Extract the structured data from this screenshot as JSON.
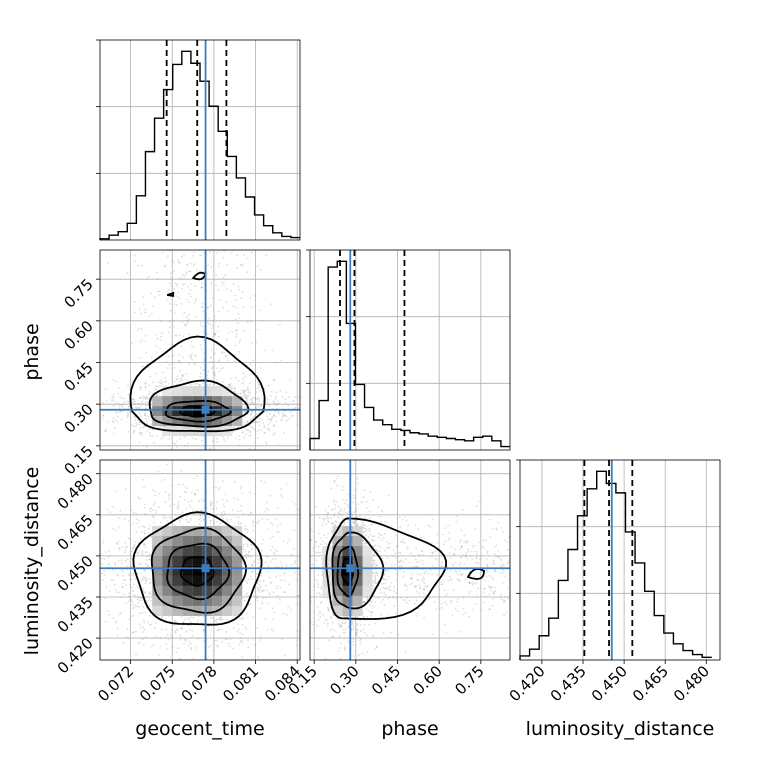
{
  "chart_data": {
    "type": "corner",
    "parameters": [
      "geocent_time",
      "phase",
      "luminosity_distance"
    ],
    "ranges": {
      "geocent_time": [
        0.0698,
        0.0842
      ],
      "phase": [
        0.135,
        0.855
      ],
      "luminosity_distance": [
        0.412,
        0.485
      ]
    },
    "ticks": {
      "geocent_time": {
        "values": [
          0.072,
          0.075,
          0.078,
          0.081,
          0.084
        ],
        "labels": [
          "0.072",
          "0.075",
          "0.078",
          "0.081",
          "0.084"
        ]
      },
      "phase": {
        "values": [
          0.15,
          0.3,
          0.45,
          0.6,
          0.75
        ],
        "labels": [
          "0.15",
          "0.30",
          "0.45",
          "0.60",
          "0.75"
        ]
      },
      "luminosity_distance": {
        "values": [
          0.42,
          0.435,
          0.45,
          0.465,
          0.48
        ],
        "labels": [
          "0.420",
          "0.435",
          "0.450",
          "0.465",
          "0.480"
        ]
      }
    },
    "truths": {
      "geocent_time": 0.0774,
      "phase": 0.28,
      "luminosity_distance": 0.4455
    },
    "quantiles": {
      "geocent_time": [
        0.0746,
        0.0768,
        0.0789
      ],
      "phase": [
        0.243,
        0.295,
        0.475
      ],
      "luminosity_distance": [
        0.4355,
        0.4445,
        0.453
      ]
    },
    "histograms": {
      "geocent_time": [
        1,
        4,
        7,
        14,
        37,
        74,
        102,
        126,
        147,
        158,
        148,
        133,
        112,
        91,
        70,
        52,
        36,
        21,
        12,
        6,
        3,
        2
      ],
      "phase": [
        10,
        43,
        159,
        164,
        110,
        57,
        37,
        26,
        22,
        18,
        17,
        15,
        14,
        12,
        11,
        10,
        9,
        8,
        11,
        12,
        8,
        3
      ],
      "luminosity_distance": [
        3,
        8,
        18,
        31,
        59,
        82,
        107,
        127,
        140,
        131,
        124,
        95,
        72,
        51,
        33,
        20,
        12,
        7,
        4,
        2
      ]
    },
    "hist_ranges": {
      "geocent_time": [
        0.0698,
        0.0842
      ],
      "phase": [
        0.135,
        0.855
      ],
      "luminosity_distance": [
        0.412,
        0.482
      ]
    },
    "joint": [
      {
        "x": "geocent_time",
        "y": "phase",
        "center": [
          0.0768,
          0.275
        ],
        "spread": [
          0.0022,
          0.035
        ],
        "tail": 0.25
      },
      {
        "x": "geocent_time",
        "y": "luminosity_distance",
        "center": [
          0.0768,
          0.4445
        ],
        "spread": [
          0.0021,
          0.0095
        ],
        "tail": 0
      },
      {
        "x": "phase",
        "y": "luminosity_distance",
        "center": [
          0.27,
          0.4445
        ],
        "spread": [
          0.035,
          0.0085
        ],
        "tail": 0.3
      }
    ],
    "grid": true
  }
}
